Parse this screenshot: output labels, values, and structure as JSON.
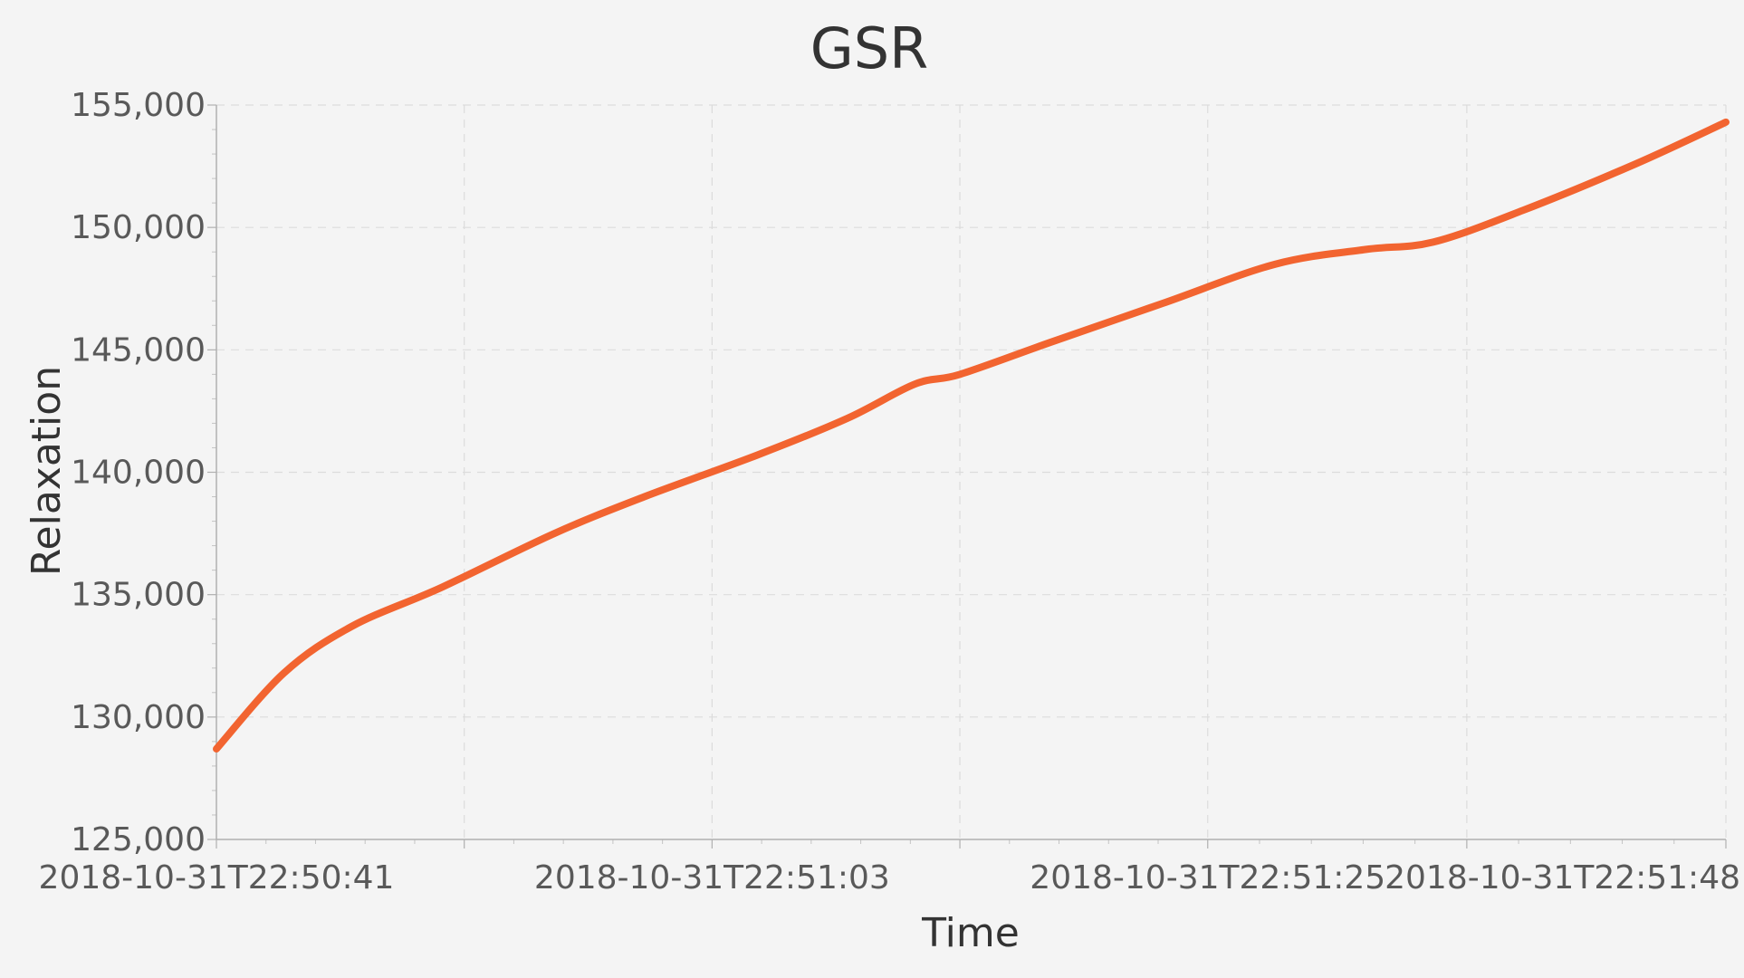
{
  "chart_data": {
    "type": "line",
    "title": "GSR",
    "xlabel": "Time",
    "ylabel": "Relaxation",
    "x_tick_labels": [
      "2018-10-31T22:50:41",
      "2018-10-31T22:51:03",
      "2018-10-31T22:51:25",
      "2018-10-31T22:51:48"
    ],
    "x_range": [
      "2018-10-31T22:50:41",
      "2018-10-31T22:51:48"
    ],
    "y_tick_labels": [
      "125,000",
      "130,000",
      "135,000",
      "140,000",
      "145,000",
      "150,000",
      "155,000"
    ],
    "ylim": [
      125000,
      155000
    ],
    "grid": true,
    "series": [
      {
        "color": "#f26430",
        "x": [
          "2018-10-31T22:50:41",
          "2018-10-31T22:50:44",
          "2018-10-31T22:50:47",
          "2018-10-31T22:50:51",
          "2018-10-31T22:50:56",
          "2018-10-31T22:51:00",
          "2018-10-31T22:51:05",
          "2018-10-31T22:51:09",
          "2018-10-31T22:51:12",
          "2018-10-31T22:51:14",
          "2018-10-31T22:51:18",
          "2018-10-31T22:51:23",
          "2018-10-31T22:51:28",
          "2018-10-31T22:51:32",
          "2018-10-31T22:51:35",
          "2018-10-31T22:51:39",
          "2018-10-31T22:51:44",
          "2018-10-31T22:51:48"
        ],
        "y": [
          128700,
          131800,
          133700,
          135300,
          137500,
          139000,
          140700,
          142200,
          143600,
          144000,
          145300,
          146900,
          148500,
          149100,
          149400,
          150700,
          152600,
          154300
        ]
      }
    ]
  }
}
